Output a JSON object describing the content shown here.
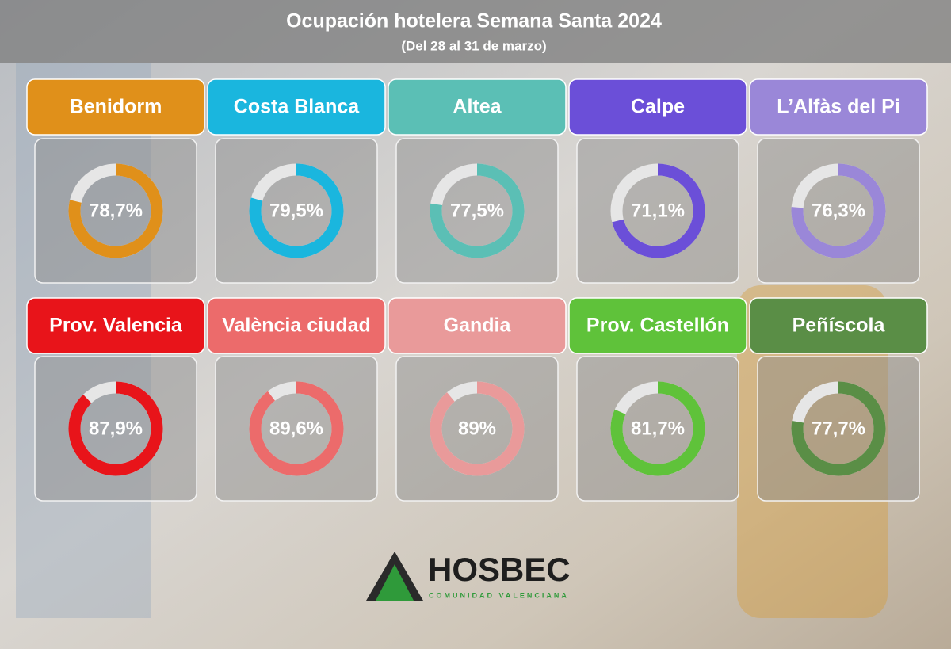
{
  "header": {
    "title": "Ocupación hotelera Semana Santa 2024",
    "subtitle": "(Del 28 al 31 de marzo)"
  },
  "chart_data": [
    {
      "type": "donut",
      "title": "Benidorm",
      "values": [
        78.7
      ],
      "value_labels": [
        "78,7%"
      ],
      "color": "#e0901a",
      "ylim": [
        0,
        100
      ]
    },
    {
      "type": "donut",
      "title": "Costa Blanca",
      "values": [
        79.5
      ],
      "value_labels": [
        "79,5%"
      ],
      "color": "#1ab6de",
      "ylim": [
        0,
        100
      ]
    },
    {
      "type": "donut",
      "title": "Altea",
      "values": [
        77.5
      ],
      "value_labels": [
        "77,5%"
      ],
      "color": "#5bbfb5",
      "ylim": [
        0,
        100
      ]
    },
    {
      "type": "donut",
      "title": "Calpe",
      "values": [
        71.1
      ],
      "value_labels": [
        "71,1%"
      ],
      "color": "#6b4fd8",
      "ylim": [
        0,
        100
      ]
    },
    {
      "type": "donut",
      "title": "L’Alfàs del Pi",
      "values": [
        76.3
      ],
      "value_labels": [
        "76,3%"
      ],
      "color": "#9a87d8",
      "ylim": [
        0,
        100
      ]
    },
    {
      "type": "donut",
      "title": "Prov. Valencia",
      "values": [
        87.9
      ],
      "value_labels": [
        "87,9%"
      ],
      "color": "#e8141a",
      "ylim": [
        0,
        100
      ]
    },
    {
      "type": "donut",
      "title": "València ciudad",
      "values": [
        89.6
      ],
      "value_labels": [
        "89,6%"
      ],
      "color": "#ec6b6b",
      "ylim": [
        0,
        100
      ]
    },
    {
      "type": "donut",
      "title": "Gandia",
      "values": [
        89
      ],
      "value_labels": [
        "89%"
      ],
      "color": "#e99a9a",
      "ylim": [
        0,
        100
      ]
    },
    {
      "type": "donut",
      "title": "Prov. Castellón",
      "values": [
        81.7
      ],
      "value_labels": [
        "81,7%"
      ],
      "color": "#5fc23a",
      "ylim": [
        0,
        100
      ]
    },
    {
      "type": "donut",
      "title": "Peñíscola",
      "values": [
        77.7
      ],
      "value_labels": [
        "77,7%"
      ],
      "color": "#5a8e46",
      "ylim": [
        0,
        100
      ]
    }
  ],
  "logo": {
    "name": "HOSBEC",
    "tagline": "COMUNIDAD VALENCIANA"
  }
}
